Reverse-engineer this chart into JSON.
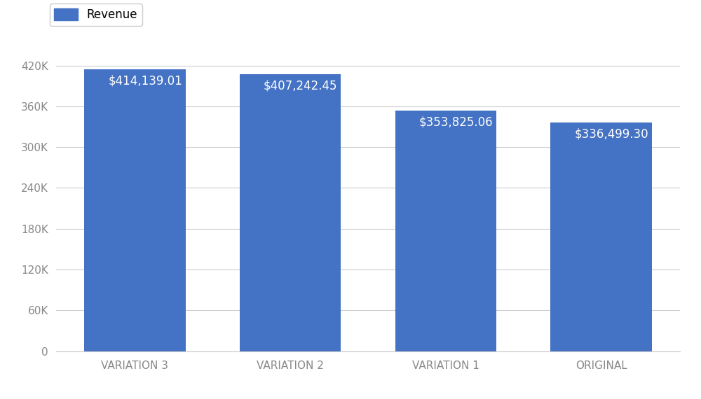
{
  "categories": [
    "VARIATION 3",
    "VARIATION 2",
    "VARIATION 1",
    "ORIGINAL"
  ],
  "values": [
    414139.01,
    407242.45,
    353825.06,
    336499.3
  ],
  "labels": [
    "$414,139.01",
    "$407,242.45",
    "$353,825.06",
    "$336,499.30"
  ],
  "bar_color": "#4472C4",
  "legend_label": "Revenue",
  "ylim": [
    0,
    440000
  ],
  "yticks": [
    0,
    60000,
    120000,
    180000,
    240000,
    300000,
    360000,
    420000
  ],
  "ytick_labels": [
    "0",
    "60K",
    "120K",
    "180K",
    "240K",
    "300K",
    "360K",
    "420K"
  ],
  "background_color": "#ffffff",
  "label_color": "#ffffff",
  "label_fontsize": 12,
  "tick_fontsize": 11,
  "legend_fontsize": 12,
  "bar_width": 0.65
}
